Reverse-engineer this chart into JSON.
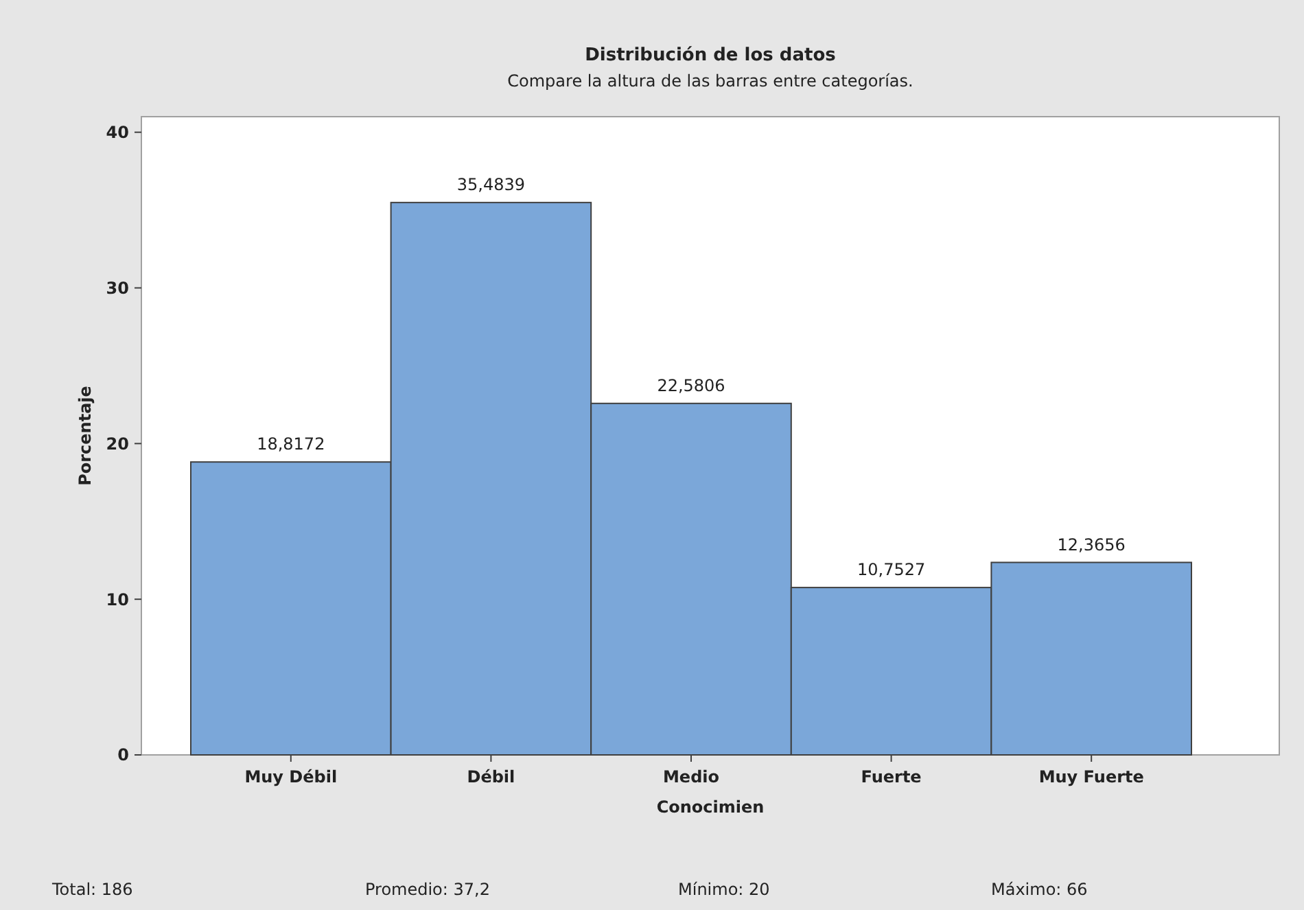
{
  "chart_data": {
    "type": "bar",
    "title": "Distribución de los datos",
    "subtitle": "Compare la altura de las barras entre categorías.",
    "xlabel": "Conocimien",
    "ylabel": "Porcentaje",
    "categories": [
      "Muy Débil",
      "Débil",
      "Medio",
      "Fuerte",
      "Muy Fuerte"
    ],
    "values": [
      18.8172,
      35.4839,
      22.5806,
      10.7527,
      12.3656
    ],
    "value_labels": [
      "18,8172",
      "35,4839",
      "22,5806",
      "10,7527",
      "12,3656"
    ],
    "color": "#7ba7d9",
    "ylim": [
      0,
      41
    ],
    "yticks": [
      0,
      10,
      20,
      30,
      40
    ],
    "grid": false,
    "annotations": [
      "Total: 186",
      "Promedio: 37,2",
      "Mínimo: 20",
      "Máximo: 66"
    ]
  }
}
